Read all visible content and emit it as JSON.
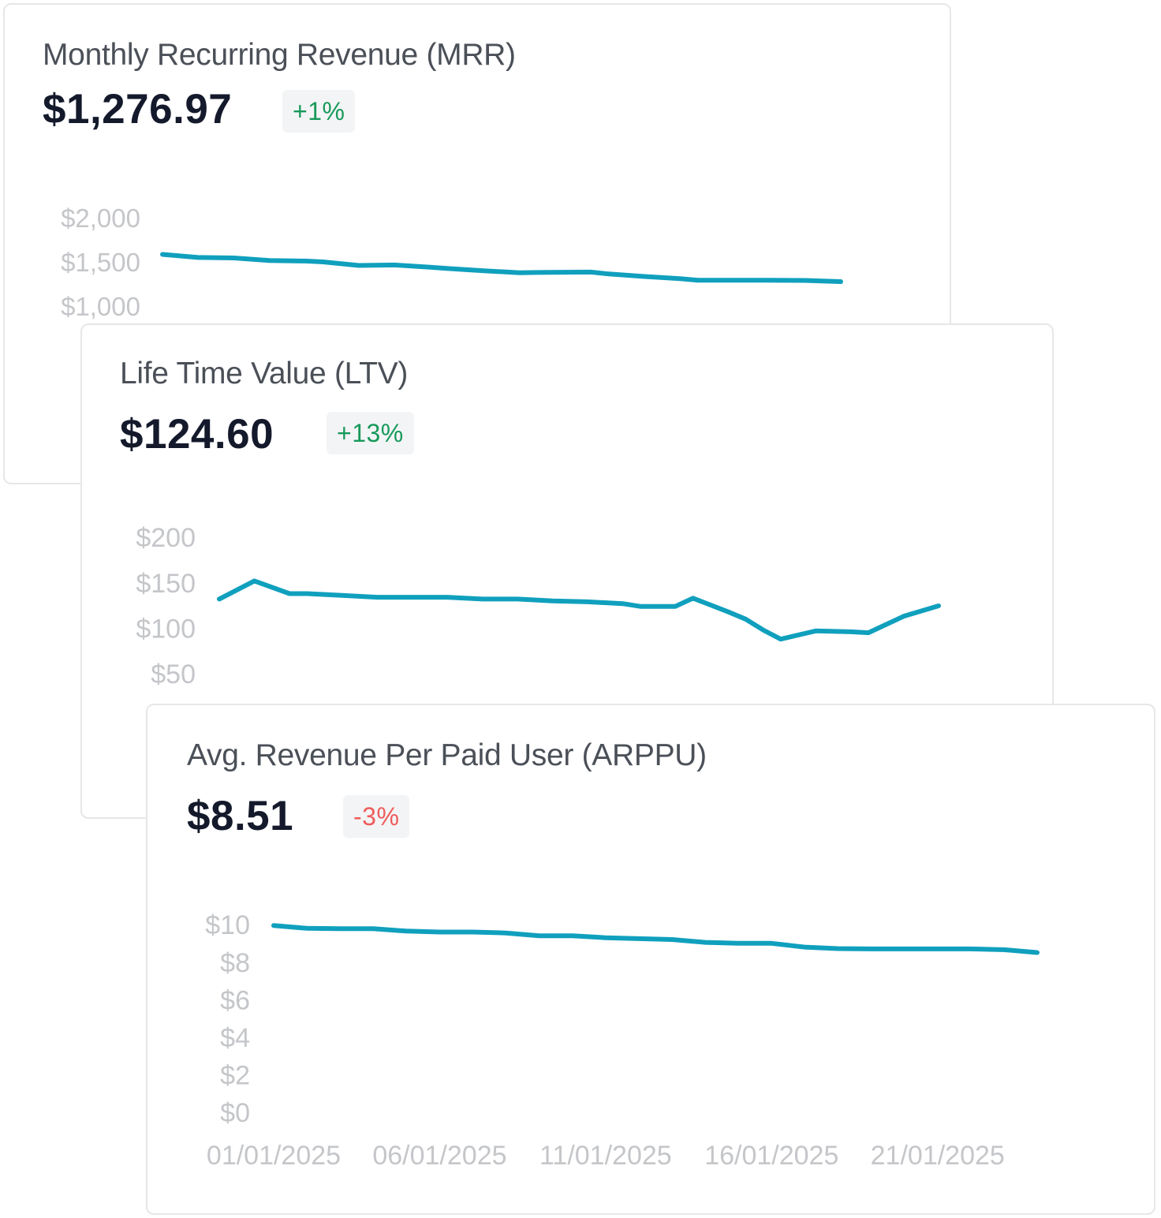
{
  "colors": {
    "line": "#10a0bd",
    "positive": "#17995a",
    "negative": "#ef5b5b",
    "tick_text": "#c4c6c9"
  },
  "cards": [
    {
      "title": "Monthly Recurring Revenue (MRR)",
      "value": "$1,276.97",
      "change": "+1%",
      "change_direction": "up",
      "chart_data": {
        "type": "line",
        "title": "",
        "xlabel": "",
        "ylabel": "",
        "y_ticks": [
          "$2,000",
          "$1,500",
          "$1,000"
        ],
        "y_tick_values": [
          2000,
          1500,
          1000
        ],
        "x": [
          1,
          3,
          5,
          7,
          9,
          10,
          12,
          14,
          16,
          17,
          19,
          21,
          22,
          25,
          26,
          28,
          30,
          31,
          32,
          33,
          35,
          37,
          39
        ],
        "series": [
          {
            "values": [
              1585,
              1550,
              1545,
              1515,
              1510,
              1500,
              1460,
              1465,
              1440,
              1425,
              1400,
              1378,
              1380,
              1385,
              1363,
              1335,
              1310,
              1293,
              1293,
              1293,
              1293,
              1290,
              1277
            ]
          }
        ]
      }
    },
    {
      "title": "Life Time Value (LTV)",
      "value": "$124.60",
      "change": "+13%",
      "change_direction": "up",
      "chart_data": {
        "type": "line",
        "title": "",
        "xlabel": "",
        "ylabel": "",
        "y_ticks": [
          "$200",
          "$150",
          "$100",
          "$50"
        ],
        "y_tick_values": [
          200,
          150,
          100,
          50
        ],
        "x": [
          1,
          3,
          5,
          6,
          8,
          10,
          12,
          14,
          16,
          18,
          20,
          22,
          24,
          25,
          27,
          28,
          30,
          31,
          32,
          33,
          35,
          37,
          38,
          40,
          42
        ],
        "series": [
          {
            "values": [
              132,
              152,
              138,
              138,
              136,
              134,
              134,
              134,
              132,
              132,
              130,
              129,
              127,
              124,
              124,
              133,
              118,
              110,
              98,
              88,
              97,
              96,
              95,
              113,
              124.6
            ]
          }
        ]
      }
    },
    {
      "title": "Avg. Revenue Per Paid User (ARPPU)",
      "value": "$8.51",
      "change": "-3%",
      "change_direction": "down",
      "chart_data": {
        "type": "line",
        "title": "",
        "xlabel": "",
        "ylabel": "",
        "y_ticks": [
          "$10",
          "$8",
          "$6",
          "$4",
          "$2",
          "$0"
        ],
        "y_tick_values": [
          10,
          8,
          6,
          4,
          2,
          0
        ],
        "x_ticks": [
          "01/01/2025",
          "06/01/2025",
          "11/01/2025",
          "16/01/2025",
          "21/01/2025"
        ],
        "x_tick_positions": [
          1,
          6,
          11,
          16,
          21
        ],
        "x": [
          1,
          2,
          3,
          4,
          5,
          6,
          7,
          8,
          9,
          10,
          11,
          12,
          13,
          14,
          15,
          16,
          17,
          18,
          19,
          20,
          21,
          22,
          23,
          24
        ],
        "series": [
          {
            "values": [
              9.95,
              9.8,
              9.78,
              9.78,
              9.65,
              9.6,
              9.6,
              9.55,
              9.4,
              9.4,
              9.3,
              9.25,
              9.2,
              9.05,
              9.0,
              9.0,
              8.8,
              8.72,
              8.7,
              8.7,
              8.7,
              8.7,
              8.66,
              8.51
            ]
          }
        ]
      }
    }
  ]
}
